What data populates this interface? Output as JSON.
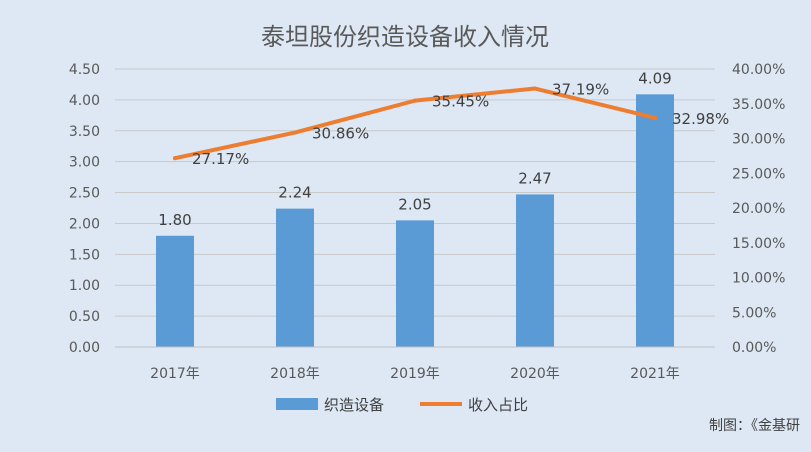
{
  "chart_data": {
    "type": "bar",
    "title": "泰坦股份织造设备收入情况",
    "categories": [
      "2017年",
      "2018年",
      "2019年",
      "2020年",
      "2021年"
    ],
    "series": [
      {
        "name": "织造设备",
        "type": "bar",
        "axis": "left",
        "values": [
          1.8,
          2.24,
          2.05,
          2.47,
          4.09
        ],
        "labels": [
          "1.80",
          "2.24",
          "2.05",
          "2.47",
          "4.09"
        ],
        "color": "#5b9bd5"
      },
      {
        "name": "收入占比",
        "type": "line",
        "axis": "right",
        "values": [
          27.17,
          30.86,
          35.45,
          37.19,
          32.98
        ],
        "labels": [
          "27.17%",
          "30.86%",
          "35.45%",
          "37.19%",
          "32.98%"
        ],
        "color": "#ed7d31"
      }
    ],
    "y_left": {
      "ylim": [
        0,
        4.5
      ],
      "ticks": [
        "0.00",
        "0.50",
        "1.00",
        "1.50",
        "2.00",
        "2.50",
        "3.00",
        "3.50",
        "4.00",
        "4.50"
      ]
    },
    "y_right": {
      "ylim": [
        0,
        40
      ],
      "ticks": [
        "0.00%",
        "5.00%",
        "10.00%",
        "15.00%",
        "20.00%",
        "25.00%",
        "30.00%",
        "35.00%",
        "40.00%"
      ]
    },
    "grid": true,
    "legend_position": "bottom"
  },
  "source": "制图：《金基研"
}
